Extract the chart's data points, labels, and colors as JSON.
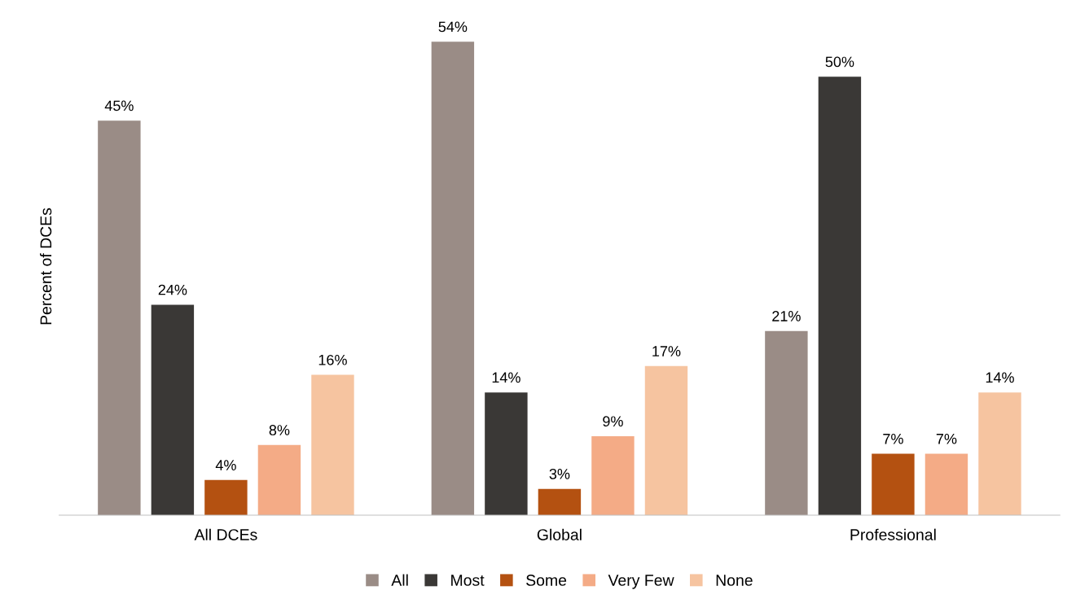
{
  "chart_data": {
    "type": "bar",
    "ylabel": "Percent of DCEs",
    "categories": [
      "All DCEs",
      "Global",
      "Professional"
    ],
    "series": [
      {
        "name": "All",
        "color": "#9a8c86",
        "values": [
          45,
          54,
          21
        ],
        "value_labels": [
          "45%",
          "54%",
          "21%"
        ]
      },
      {
        "name": "Most",
        "color": "#3a3836",
        "values": [
          24,
          14,
          50
        ],
        "value_labels": [
          "24%",
          "14%",
          "50%"
        ]
      },
      {
        "name": "Some",
        "color": "#b45111",
        "values": [
          4,
          3,
          7
        ],
        "value_labels": [
          "4%",
          "3%",
          "7%"
        ]
      },
      {
        "name": "Very Few",
        "color": "#f4ab86",
        "values": [
          8,
          9,
          7
        ],
        "value_labels": [
          "8%",
          "9%",
          "7%"
        ]
      },
      {
        "name": "None",
        "color": "#f6c4a0",
        "values": [
          16,
          17,
          14
        ],
        "value_labels": [
          "16%",
          "17%",
          "14%"
        ]
      }
    ],
    "legend": "bottom",
    "grid": false,
    "tick_labels": "x"
  }
}
